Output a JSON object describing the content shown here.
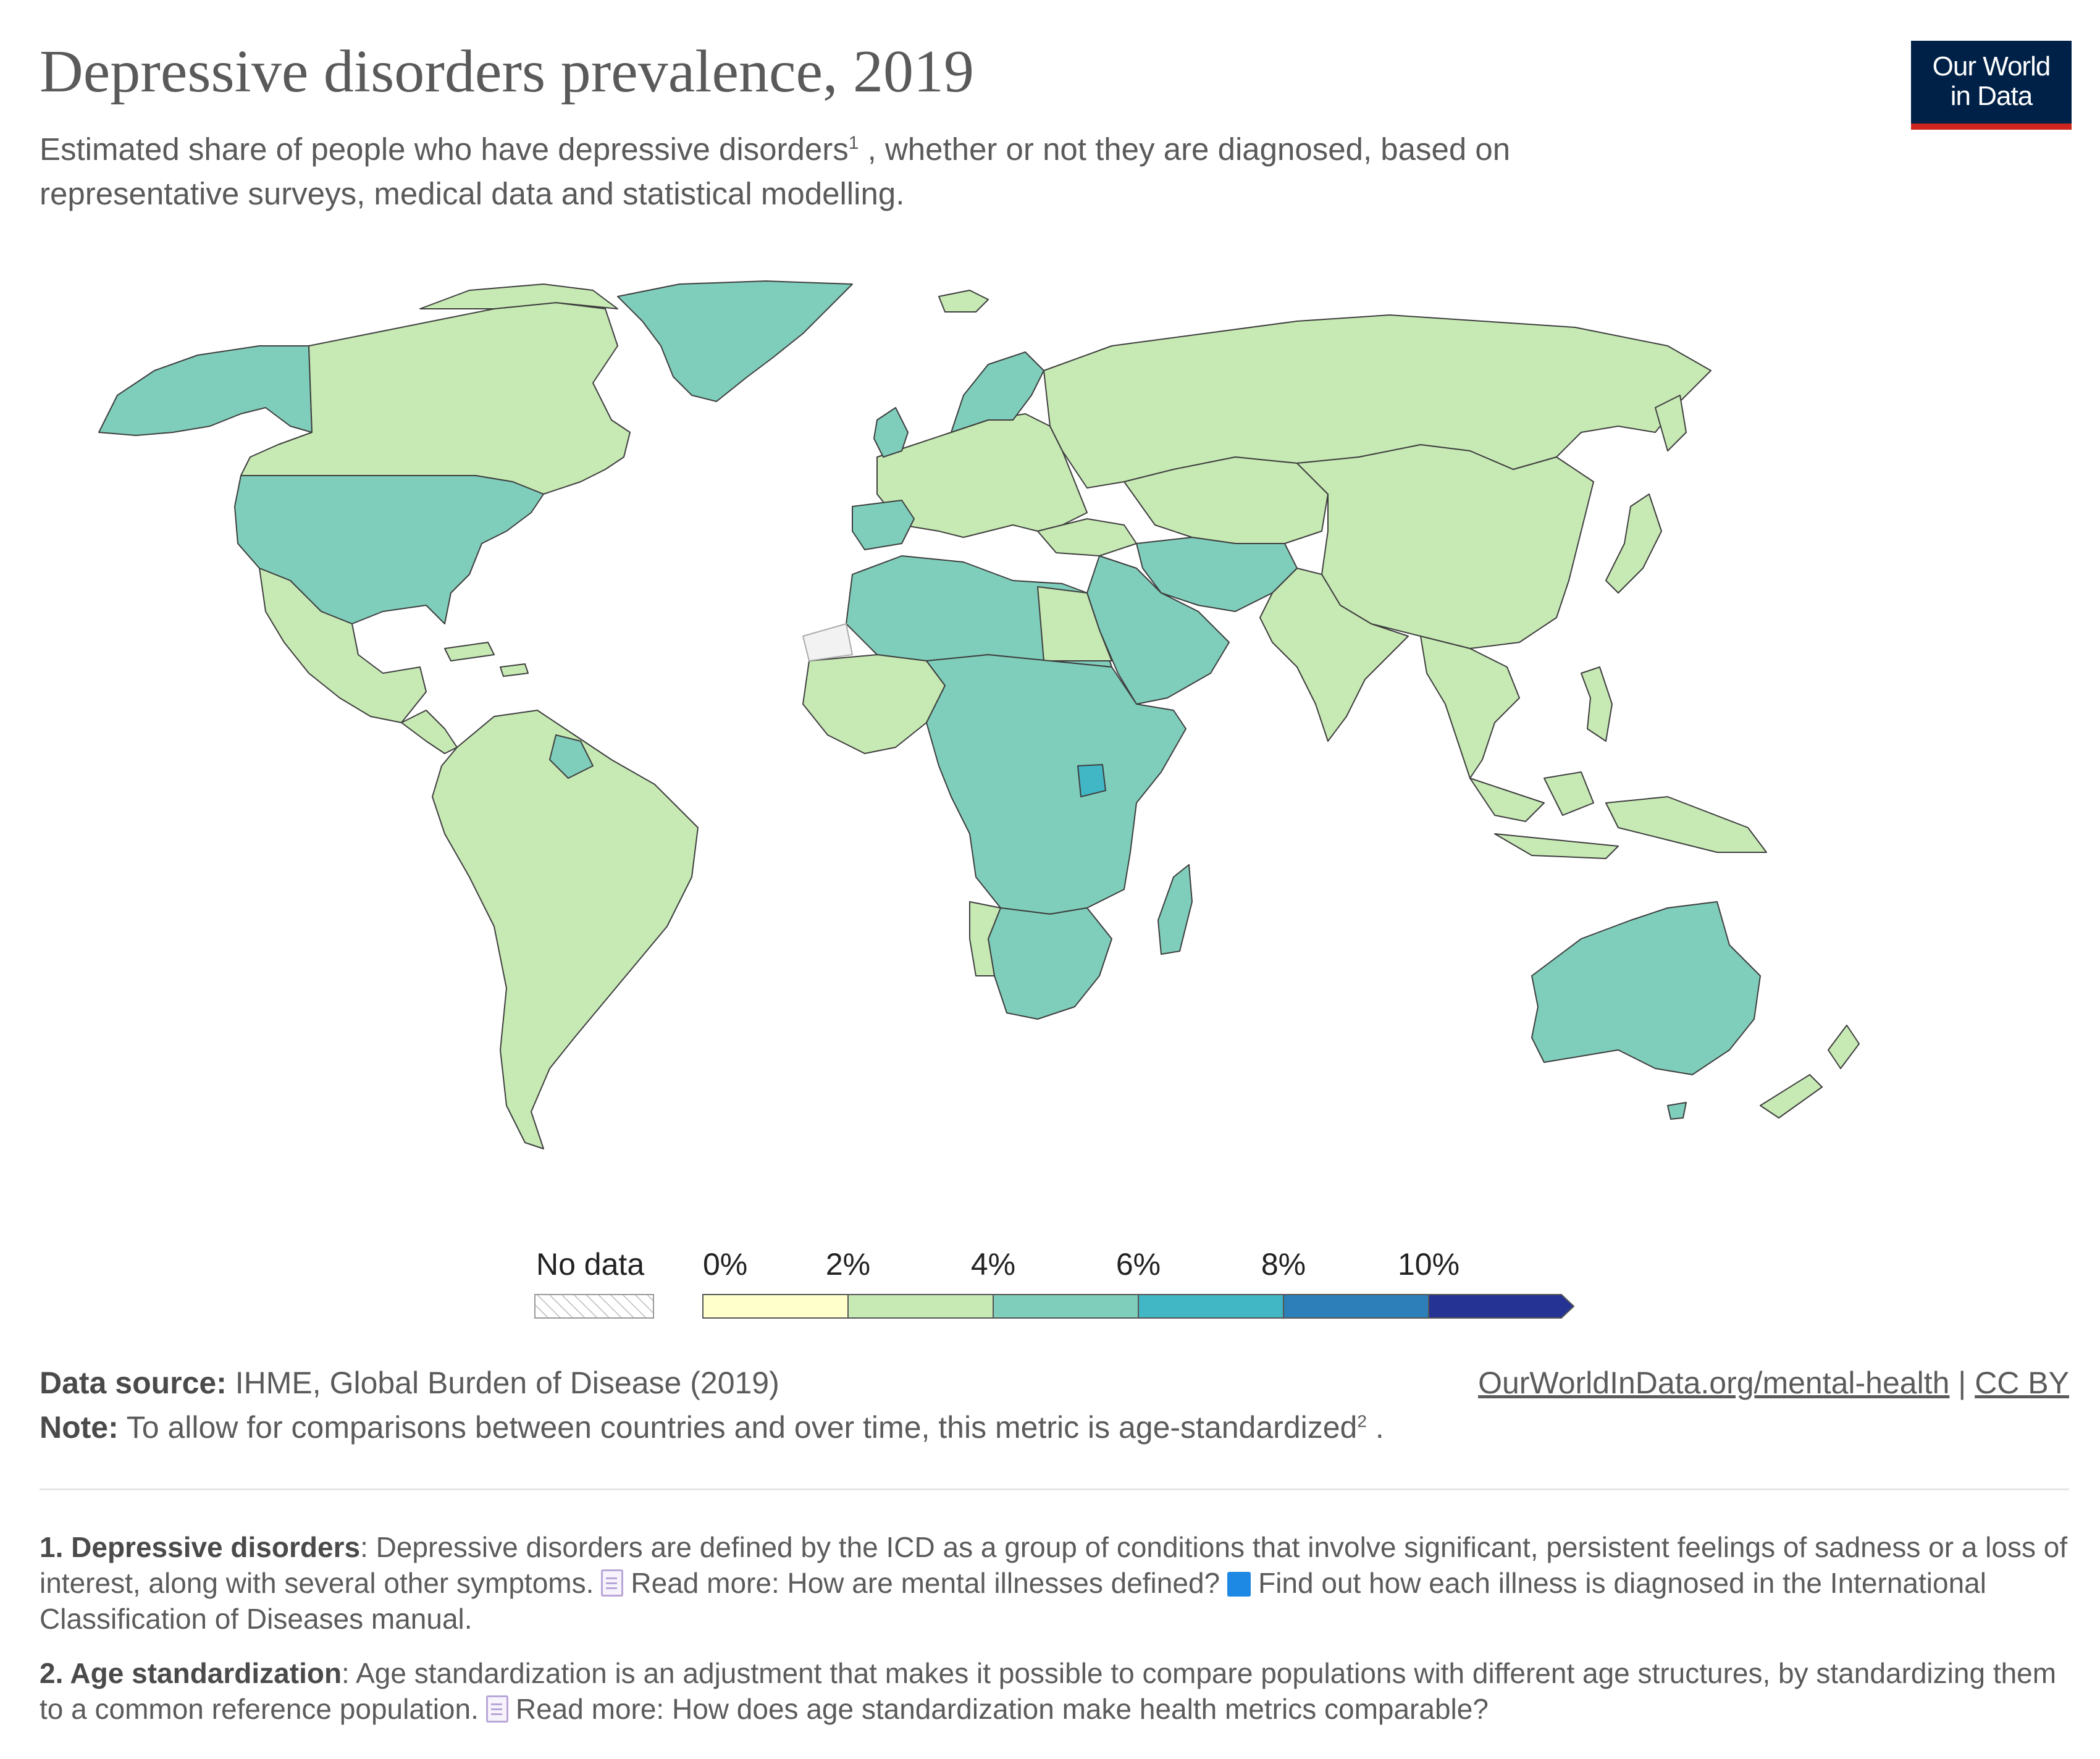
{
  "header": {
    "title": "Depressive disorders prevalence, 2019",
    "subtitle_part1": "Estimated share of people who have depressive disorders",
    "subtitle_sup": "1",
    "subtitle_part2": " , whether or not they are diagnosed, based on representative surveys, medical data and statistical modelling."
  },
  "logo": {
    "line1": "Our World",
    "line2": "in Data"
  },
  "legend": {
    "no_data_label": "No data",
    "bins": [
      {
        "label": "0%",
        "color": "#ffffcc"
      },
      {
        "label": "2%",
        "color": "#c7e9b4"
      },
      {
        "label": "4%",
        "color": "#7fcdbb"
      },
      {
        "label": "6%",
        "color": "#41b6c4"
      },
      {
        "label": "8%",
        "color": "#2c7fb8"
      },
      {
        "label": "10%",
        "color": "#253494"
      }
    ]
  },
  "colors": {
    "bin_2_4": "#c7e9b4",
    "bin_4_6": "#7fcdbb",
    "bin_6_8": "#41b6c4",
    "border": "#3e3e3e",
    "logo_bg": "#002147",
    "logo_accent": "#ce261e"
  },
  "footer": {
    "source_label": "Data source:",
    "source_text": " IHME, Global Burden of Disease (2019)",
    "note_label": "Note:",
    "note_text": " To allow for comparisons between countries and over time, this metric is age-standardized",
    "note_sup": "2",
    "note_end": " .",
    "link_url": "OurWorldInData.org/mental-health",
    "link_sep": " | ",
    "license": "CC BY"
  },
  "footnotes": {
    "fn1_label": "1. Depressive disorders",
    "fn1_text": ": Depressive disorders are defined by the ICD as a group of conditions that involve significant, persistent feelings of sadness or a loss of interest, along with several other symptoms.",
    "fn1_link1": "Read more: How are mental illnesses defined?",
    "fn1_link2": "Find out how each illness is diagnosed in the International Classification of Diseases manual.",
    "fn2_label": "2. Age standardization",
    "fn2_text": ": Age standardization is an adjustment that makes it possible to compare populations with different age structures, by standardizing them to a common reference population.",
    "fn2_link1": "Read more: How does age standardization make health metrics comparable?"
  }
}
